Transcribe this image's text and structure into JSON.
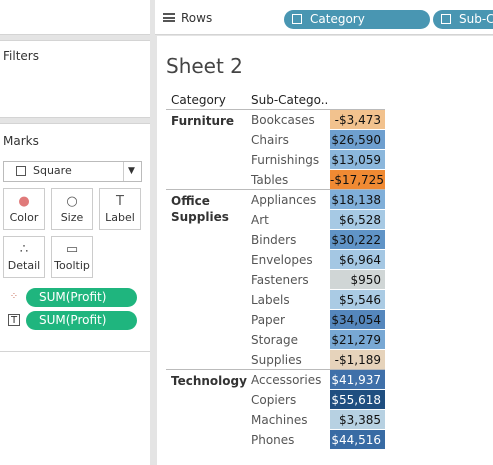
{
  "shelf": {
    "label": "Rows",
    "pills": [
      "Category",
      "Sub-Category"
    ]
  },
  "filters": {
    "title": "Filters"
  },
  "marks": {
    "title": "Marks",
    "mark_type": "Square",
    "buttons": [
      "Color",
      "Size",
      "Label",
      "Detail",
      "Tooltip"
    ],
    "fields": [
      "SUM(Profit)",
      "SUM(Profit)"
    ]
  },
  "sheet": {
    "title": "Sheet 2",
    "columns": [
      "Category",
      "Sub-Catego.."
    ],
    "groups": [
      {
        "category": "Furniture",
        "rows": [
          {
            "sub": "Bookcases",
            "profit": "-$3,473",
            "color": "#f2c28e"
          },
          {
            "sub": "Chairs",
            "profit": "$26,590",
            "color": "#6e9fcf"
          },
          {
            "sub": "Furnishings",
            "profit": "$13,059",
            "color": "#8bb7dc"
          },
          {
            "sub": "Tables",
            "profit": "-$17,725",
            "color": "#f08a33"
          }
        ]
      },
      {
        "category": "Office Supplies",
        "rows": [
          {
            "sub": "Appliances",
            "profit": "$18,138",
            "color": "#80afd9"
          },
          {
            "sub": "Art",
            "profit": "$6,528",
            "color": "#a6c9e4"
          },
          {
            "sub": "Binders",
            "profit": "$30,222",
            "color": "#6094c7"
          },
          {
            "sub": "Envelopes",
            "profit": "$6,964",
            "color": "#a4c7e3"
          },
          {
            "sub": "Fasteners",
            "profit": "$950",
            "color": "#d0d6d6"
          },
          {
            "sub": "Labels",
            "profit": "$5,546",
            "color": "#aacbe4"
          },
          {
            "sub": "Paper",
            "profit": "$34,054",
            "color": "#5587bd"
          },
          {
            "sub": "Storage",
            "profit": "$21,279",
            "color": "#78a8d4"
          },
          {
            "sub": "Supplies",
            "profit": "-$1,189",
            "color": "#e6d3bb"
          }
        ]
      },
      {
        "category": "Technology",
        "rows": [
          {
            "sub": "Accessories",
            "profit": "$41,937",
            "color": "#3f70a9"
          },
          {
            "sub": "Copiers",
            "profit": "$55,618",
            "color": "#1f4e80"
          },
          {
            "sub": "Machines",
            "profit": "$3,385",
            "color": "#b7d1e2"
          },
          {
            "sub": "Phones",
            "profit": "$44,516",
            "color": "#386ba4"
          }
        ]
      }
    ]
  }
}
